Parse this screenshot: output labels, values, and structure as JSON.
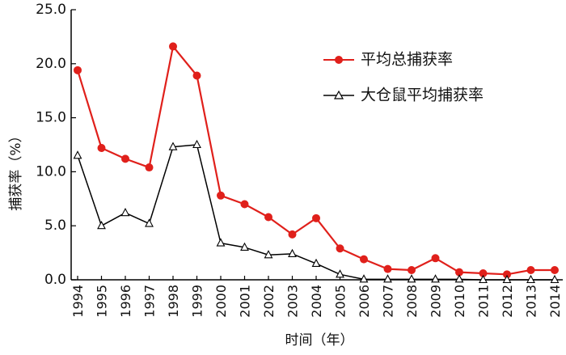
{
  "chart_data": {
    "type": "line",
    "title": "",
    "xlabel": "时间（年）",
    "ylabel": "捕获率（%）",
    "ylim": [
      0,
      25
    ],
    "yticks": [
      "0.0",
      "5.0",
      "10.0",
      "15.0",
      "20.0",
      "25.0"
    ],
    "categories": [
      "1994",
      "1995",
      "1996",
      "1997",
      "1998",
      "1999",
      "2000",
      "2001",
      "2002",
      "2003",
      "2004",
      "2005",
      "2006",
      "2007",
      "2008",
      "2009",
      "2010",
      "2011",
      "2012",
      "2013",
      "2014"
    ],
    "series": [
      {
        "name": "平均总捕获率",
        "color": "#e0201b",
        "marker": "circle",
        "values": [
          19.4,
          12.2,
          11.2,
          10.4,
          21.6,
          18.9,
          7.8,
          7.0,
          5.8,
          4.2,
          5.7,
          2.9,
          1.9,
          1.0,
          0.9,
          2.0,
          0.7,
          0.6,
          0.5,
          0.9,
          0.9
        ]
      },
      {
        "name": "大仓鼠平均捕获率",
        "color": "#000000",
        "marker": "triangle-open",
        "values": [
          11.5,
          5.0,
          6.2,
          5.2,
          12.3,
          12.5,
          3.4,
          3.0,
          2.3,
          2.4,
          1.5,
          0.5,
          0.05,
          0.05,
          0.05,
          0.05,
          0.05,
          0.0,
          0.0,
          0.0,
          0.0
        ]
      }
    ],
    "legend_position": "top-right",
    "grid": false
  }
}
